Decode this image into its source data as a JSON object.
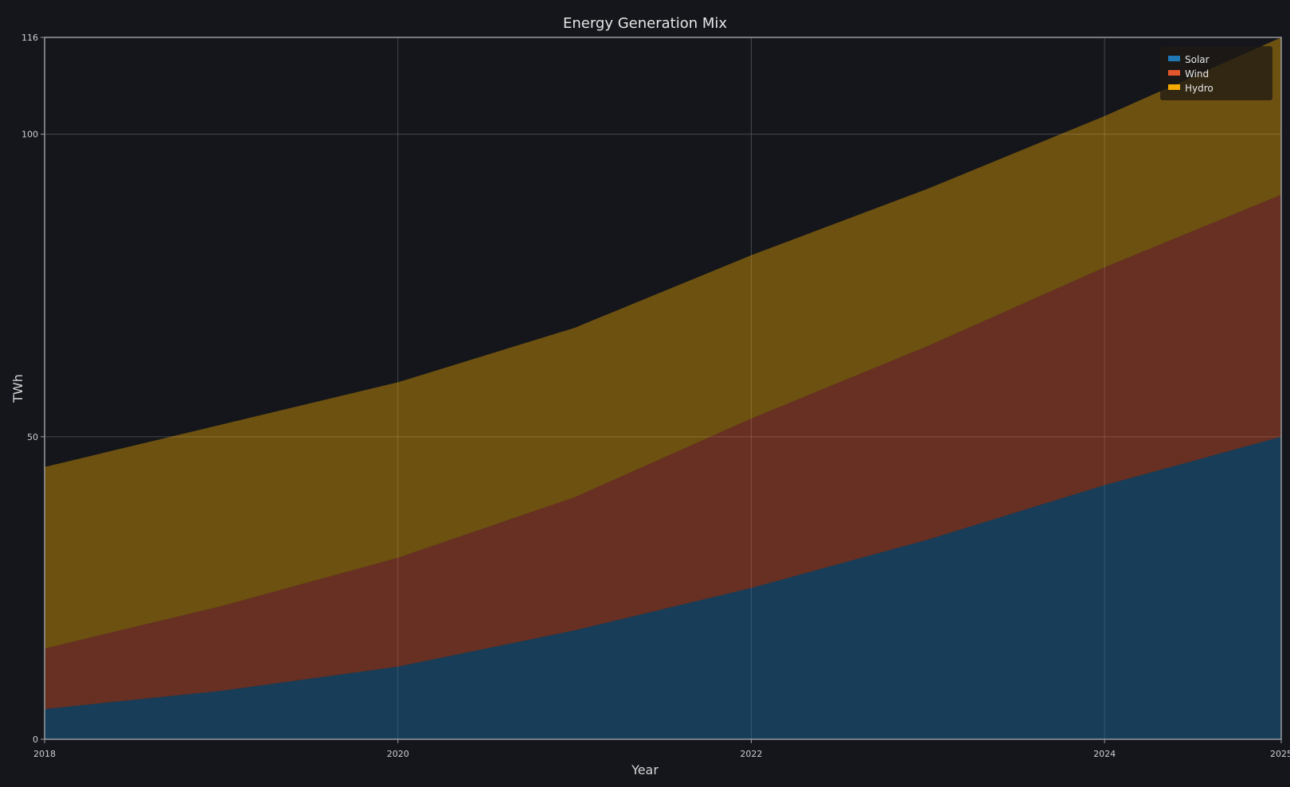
{
  "chart_data": {
    "type": "area",
    "stacked": true,
    "title": "Energy Generation Mix",
    "xlabel": "Year",
    "ylabel": "TWh",
    "x": [
      2018,
      2019,
      2020,
      2021,
      2022,
      2023,
      2024,
      2025
    ],
    "xlim": [
      2018,
      2025
    ],
    "ylim": [
      0,
      116
    ],
    "x_ticks": [
      "2018",
      "2020",
      "2022",
      "2024",
      "2025"
    ],
    "x_tick_values": [
      2018,
      2020,
      2022,
      2024,
      2025
    ],
    "y_ticks": [
      "0",
      "50",
      "100",
      "116"
    ],
    "y_tick_values": [
      0,
      50,
      100,
      116
    ],
    "grid": true,
    "legend_position": "top-right",
    "series": [
      {
        "name": "Solar",
        "values": [
          5,
          8,
          12,
          18,
          25,
          33,
          42,
          50
        ],
        "color": "#1f77b4"
      },
      {
        "name": "Wind",
        "values": [
          10,
          14,
          18,
          22,
          28,
          32,
          36,
          40
        ],
        "color": "#e4572e"
      },
      {
        "name": "Hydro",
        "values": [
          30,
          30,
          29,
          28,
          27,
          26,
          25,
          26
        ],
        "color": "#f2a900"
      }
    ]
  }
}
